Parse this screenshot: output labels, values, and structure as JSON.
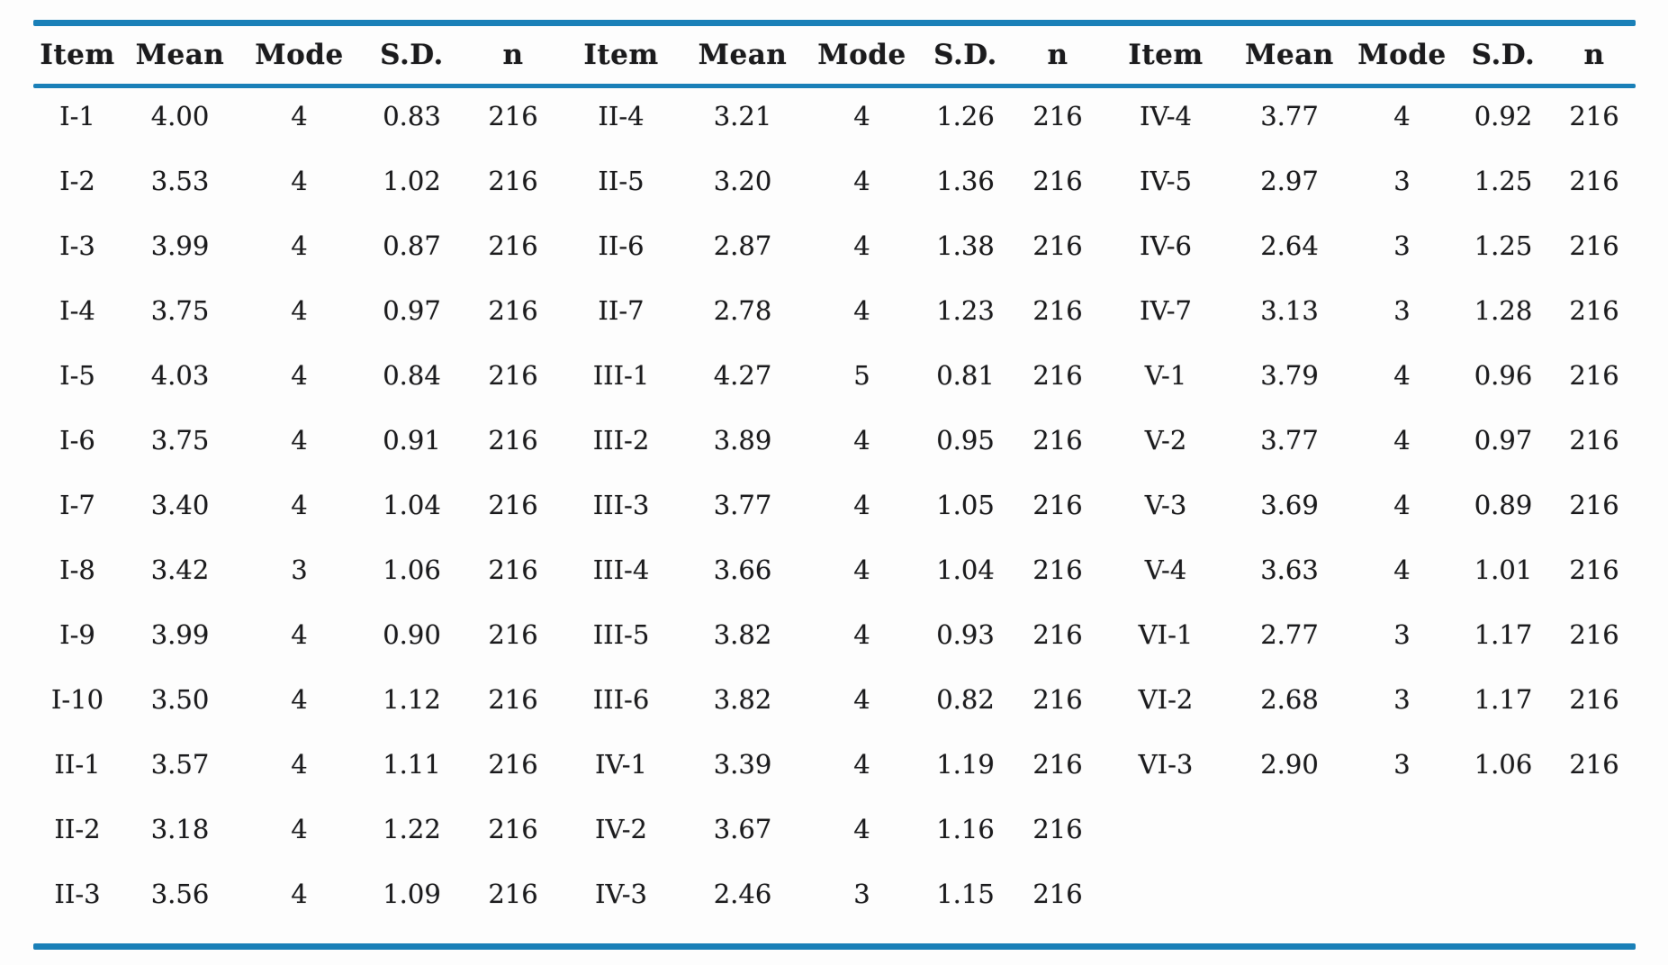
{
  "table": {
    "columns": [
      "Item",
      "Mean",
      "Mode",
      "S.D.",
      "n"
    ],
    "blocks": [
      {
        "rows": [
          [
            "I-1",
            "4.00",
            "4",
            "0.83",
            "216"
          ],
          [
            "I-2",
            "3.53",
            "4",
            "1.02",
            "216"
          ],
          [
            "I-3",
            "3.99",
            "4",
            "0.87",
            "216"
          ],
          [
            "I-4",
            "3.75",
            "4",
            "0.97",
            "216"
          ],
          [
            "I-5",
            "4.03",
            "4",
            "0.84",
            "216"
          ],
          [
            "I-6",
            "3.75",
            "4",
            "0.91",
            "216"
          ],
          [
            "I-7",
            "3.40",
            "4",
            "1.04",
            "216"
          ],
          [
            "I-8",
            "3.42",
            "3",
            "1.06",
            "216"
          ],
          [
            "I-9",
            "3.99",
            "4",
            "0.90",
            "216"
          ],
          [
            "I-10",
            "3.50",
            "4",
            "1.12",
            "216"
          ],
          [
            "II-1",
            "3.57",
            "4",
            "1.11",
            "216"
          ],
          [
            "II-2",
            "3.18",
            "4",
            "1.22",
            "216"
          ],
          [
            "II-3",
            "3.56",
            "4",
            "1.09",
            "216"
          ]
        ]
      },
      {
        "rows": [
          [
            "II-4",
            "3.21",
            "4",
            "1.26",
            "216"
          ],
          [
            "II-5",
            "3.20",
            "4",
            "1.36",
            "216"
          ],
          [
            "II-6",
            "2.87",
            "4",
            "1.38",
            "216"
          ],
          [
            "II-7",
            "2.78",
            "4",
            "1.23",
            "216"
          ],
          [
            "III-1",
            "4.27",
            "5",
            "0.81",
            "216"
          ],
          [
            "III-2",
            "3.89",
            "4",
            "0.95",
            "216"
          ],
          [
            "III-3",
            "3.77",
            "4",
            "1.05",
            "216"
          ],
          [
            "III-4",
            "3.66",
            "4",
            "1.04",
            "216"
          ],
          [
            "III-5",
            "3.82",
            "4",
            "0.93",
            "216"
          ],
          [
            "III-6",
            "3.82",
            "4",
            "0.82",
            "216"
          ],
          [
            "IV-1",
            "3.39",
            "4",
            "1.19",
            "216"
          ],
          [
            "IV-2",
            "3.67",
            "4",
            "1.16",
            "216"
          ],
          [
            "IV-3",
            "2.46",
            "3",
            "1.15",
            "216"
          ]
        ]
      },
      {
        "rows": [
          [
            "IV-4",
            "3.77",
            "4",
            "0.92",
            "216"
          ],
          [
            "IV-5",
            "2.97",
            "3",
            "1.25",
            "216"
          ],
          [
            "IV-6",
            "2.64",
            "3",
            "1.25",
            "216"
          ],
          [
            "IV-7",
            "3.13",
            "3",
            "1.28",
            "216"
          ],
          [
            "V-1",
            "3.79",
            "4",
            "0.96",
            "216"
          ],
          [
            "V-2",
            "3.77",
            "4",
            "0.97",
            "216"
          ],
          [
            "V-3",
            "3.69",
            "4",
            "0.89",
            "216"
          ],
          [
            "V-4",
            "3.63",
            "4",
            "1.01",
            "216"
          ],
          [
            "VI-1",
            "2.77",
            "3",
            "1.17",
            "216"
          ],
          [
            "VI-2",
            "2.68",
            "3",
            "1.17",
            "216"
          ],
          [
            "VI-3",
            "2.90",
            "3",
            "1.06",
            "216"
          ]
        ]
      }
    ]
  },
  "colors": {
    "rule_blue": "#1a80b8",
    "text": "#1b1b1d",
    "background": "#fdfdfd"
  }
}
